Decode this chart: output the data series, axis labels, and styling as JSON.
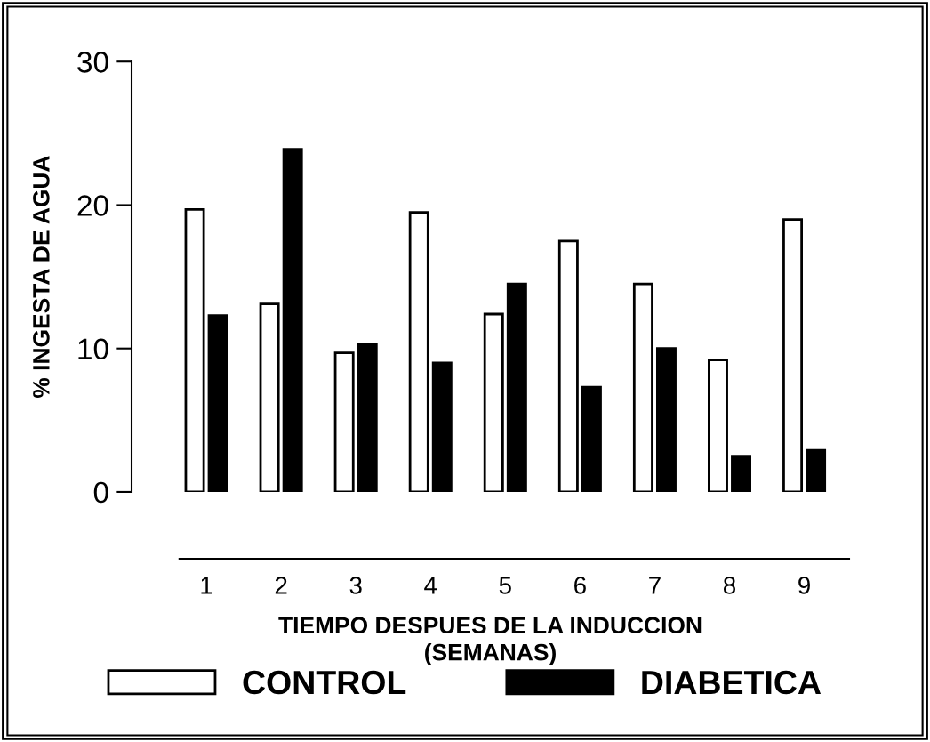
{
  "chart_data": {
    "type": "bar",
    "xlabel": "TIEMPO DESPUES DE LA INDUCCION\n(SEMANAS)",
    "ylabel": "% INGESTA DE AGUA",
    "categories": [
      "1",
      "2",
      "3",
      "4",
      "5",
      "6",
      "7",
      "8",
      "9"
    ],
    "series": [
      {
        "name": "CONTROL",
        "color": "#ffffff",
        "values": [
          19.7,
          13.1,
          9.7,
          19.5,
          12.4,
          17.5,
          14.5,
          9.2,
          19.0
        ]
      },
      {
        "name": "DIABETICA",
        "color": "#000000",
        "values": [
          12.3,
          23.9,
          10.3,
          9.0,
          14.5,
          7.3,
          10.0,
          2.5,
          2.9
        ]
      }
    ],
    "ylim": [
      0,
      30
    ],
    "yticks": [
      0,
      10,
      20,
      30
    ],
    "grid": false,
    "legend": "bottom"
  }
}
